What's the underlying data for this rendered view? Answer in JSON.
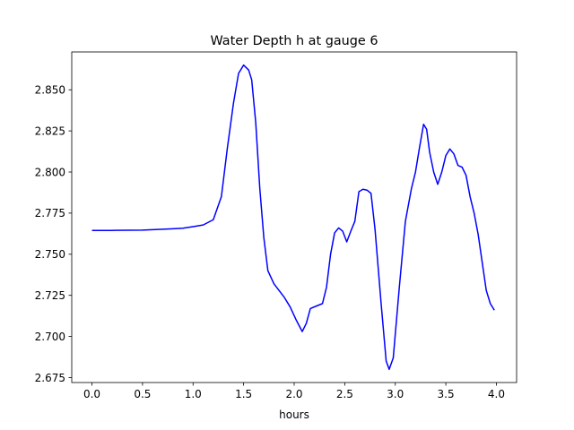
{
  "chart_data": {
    "type": "line",
    "title": "Water Depth h at gauge 6",
    "xlabel": "hours",
    "ylabel": "",
    "xlim": [
      -0.2,
      4.2
    ],
    "ylim": [
      2.672,
      2.873
    ],
    "xticks": [
      0.0,
      0.5,
      1.0,
      1.5,
      2.0,
      2.5,
      3.0,
      3.5,
      4.0
    ],
    "xtick_labels": [
      "0.0",
      "0.5",
      "1.0",
      "1.5",
      "2.0",
      "2.5",
      "3.0",
      "3.5",
      "4.0"
    ],
    "yticks": [
      2.675,
      2.7,
      2.725,
      2.75,
      2.775,
      2.8,
      2.825,
      2.85
    ],
    "ytick_labels": [
      "2.675",
      "2.700",
      "2.725",
      "2.750",
      "2.775",
      "2.800",
      "2.825",
      "2.850"
    ],
    "grid": false,
    "series": [
      {
        "color": "#0000ff",
        "points": [
          [
            0.0,
            2.7645
          ],
          [
            0.2,
            2.7645
          ],
          [
            0.5,
            2.7647
          ],
          [
            0.8,
            2.7655
          ],
          [
            0.9,
            2.7658
          ],
          [
            1.0,
            2.7668
          ],
          [
            1.1,
            2.7678
          ],
          [
            1.2,
            2.771
          ],
          [
            1.28,
            2.785
          ],
          [
            1.34,
            2.815
          ],
          [
            1.4,
            2.842
          ],
          [
            1.45,
            2.86
          ],
          [
            1.5,
            2.865
          ],
          [
            1.55,
            2.862
          ],
          [
            1.58,
            2.856
          ],
          [
            1.62,
            2.83
          ],
          [
            1.66,
            2.79
          ],
          [
            1.7,
            2.76
          ],
          [
            1.74,
            2.74
          ],
          [
            1.8,
            2.732
          ],
          [
            1.85,
            2.728
          ],
          [
            1.9,
            2.724
          ],
          [
            1.96,
            2.718
          ],
          [
            2.02,
            2.71
          ],
          [
            2.08,
            2.703
          ],
          [
            2.12,
            2.708
          ],
          [
            2.16,
            2.717
          ],
          [
            2.22,
            2.7185
          ],
          [
            2.28,
            2.72
          ],
          [
            2.32,
            2.73
          ],
          [
            2.36,
            2.75
          ],
          [
            2.4,
            2.763
          ],
          [
            2.44,
            2.766
          ],
          [
            2.48,
            2.764
          ],
          [
            2.52,
            2.7575
          ],
          [
            2.56,
            2.764
          ],
          [
            2.6,
            2.77
          ],
          [
            2.64,
            2.788
          ],
          [
            2.68,
            2.7895
          ],
          [
            2.72,
            2.789
          ],
          [
            2.76,
            2.787
          ],
          [
            2.8,
            2.765
          ],
          [
            2.86,
            2.72
          ],
          [
            2.91,
            2.685
          ],
          [
            2.94,
            2.68
          ],
          [
            2.98,
            2.687
          ],
          [
            3.04,
            2.73
          ],
          [
            3.1,
            2.77
          ],
          [
            3.16,
            2.79
          ],
          [
            3.2,
            2.8
          ],
          [
            3.24,
            2.815
          ],
          [
            3.28,
            2.829
          ],
          [
            3.31,
            2.826
          ],
          [
            3.34,
            2.812
          ],
          [
            3.38,
            2.8
          ],
          [
            3.42,
            2.7925
          ],
          [
            3.46,
            2.8
          ],
          [
            3.5,
            2.81
          ],
          [
            3.54,
            2.814
          ],
          [
            3.58,
            2.811
          ],
          [
            3.62,
            2.804
          ],
          [
            3.66,
            2.803
          ],
          [
            3.7,
            2.798
          ],
          [
            3.74,
            2.785
          ],
          [
            3.78,
            2.775
          ],
          [
            3.82,
            2.762
          ],
          [
            3.86,
            2.745
          ],
          [
            3.9,
            2.728
          ],
          [
            3.94,
            2.72
          ],
          [
            3.98,
            2.716
          ]
        ]
      }
    ]
  }
}
